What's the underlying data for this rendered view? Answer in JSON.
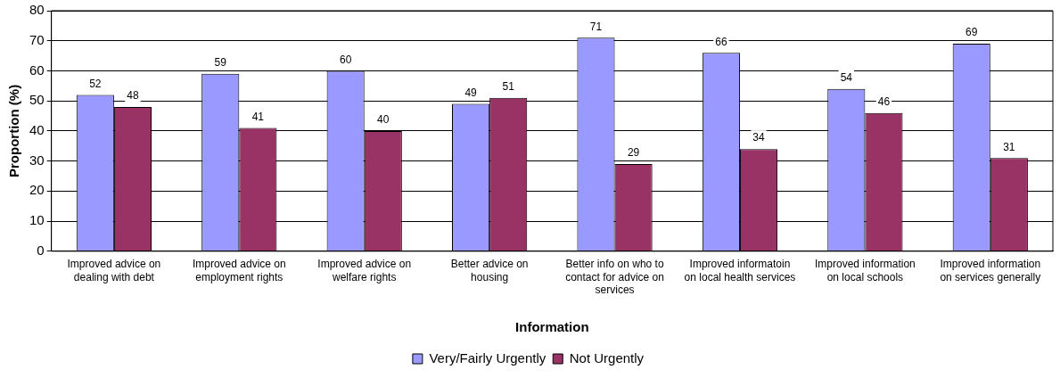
{
  "chart_data": {
    "type": "bar",
    "xlabel": "Information",
    "ylabel": "Proportion (%)",
    "categories": [
      "Improved advice on dealing with debt",
      "Improved advice on employment rights",
      "Improved advice on welfare rights",
      "Better advice on housing",
      "Better info on who to contact for advice on services",
      "Improved informatoin on local health services",
      "Improved information on local schools",
      "Improved information on services generally"
    ],
    "series": [
      {
        "name": "Very/Fairly Urgently",
        "color": "#9999ff",
        "values": [
          52,
          59,
          60,
          49,
          71,
          66,
          54,
          69
        ]
      },
      {
        "name": "Not Urgently",
        "color": "#993366",
        "values": [
          48,
          41,
          40,
          51,
          29,
          34,
          46,
          31
        ]
      }
    ],
    "ylim": [
      0,
      80
    ],
    "yticks": [
      0,
      10,
      20,
      30,
      40,
      50,
      60,
      70,
      80
    ],
    "grid": "y",
    "legend": "bottom",
    "data_labels": true
  }
}
